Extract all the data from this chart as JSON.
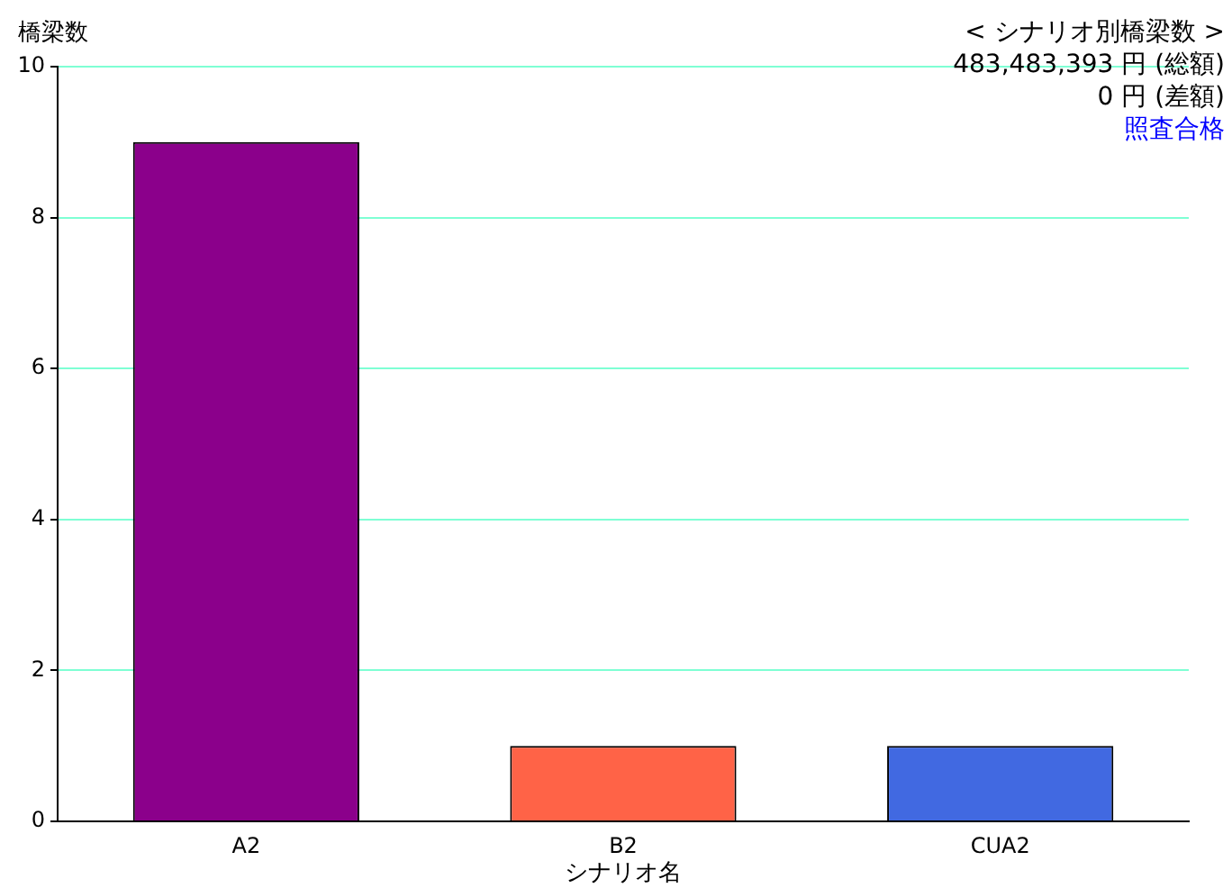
{
  "chart_data": {
    "type": "bar",
    "title": "< シナリオ別橋梁数 >",
    "ylabel": "橋梁数",
    "xlabel": "シナリオ名",
    "categories": [
      "A2",
      "B2",
      "CUA2"
    ],
    "values": [
      9,
      1,
      1
    ],
    "colors": [
      "#8b008b",
      "#ff6347",
      "#4169e1"
    ],
    "ylim": [
      0,
      10
    ],
    "yticks": [
      0,
      2,
      4,
      6,
      8,
      10
    ],
    "grid": "y",
    "annotations": [
      "483,483,393 円 (総額)",
      "0 円 (差額)",
      "照査合格"
    ]
  }
}
